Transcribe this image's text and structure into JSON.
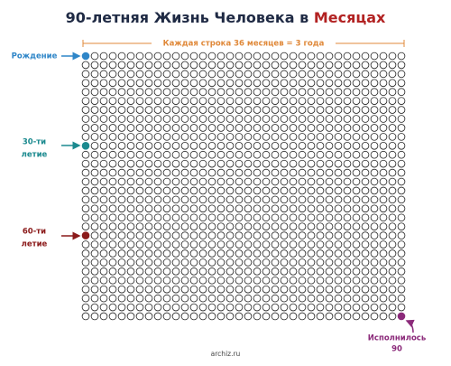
{
  "title": {
    "main": "90-летняя Жизнь Человека в ",
    "highlight": "Месяцах"
  },
  "row_note": "Каждая строка 36 месяцев = 3 года",
  "labels": {
    "birth": "Рождение",
    "age30": [
      "30-ти",
      "летие"
    ],
    "age60": [
      "60-ти",
      "летие"
    ],
    "end": [
      "Исполнилось",
      "90"
    ]
  },
  "footer": "archiz.ru"
}
